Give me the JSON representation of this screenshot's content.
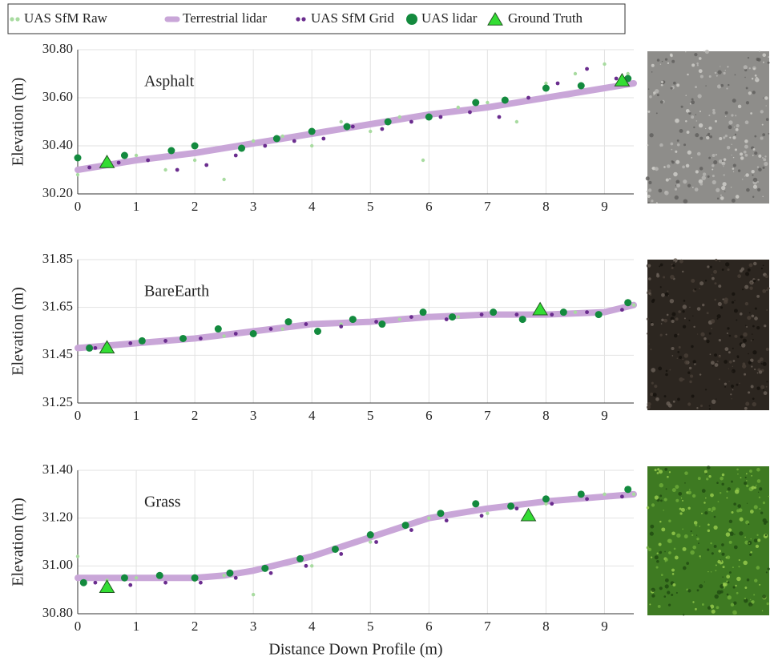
{
  "chart_data": [
    {
      "type": "scatter",
      "title": "Asphalt",
      "ylabel": "Elevation (m)",
      "legend": "top",
      "grid": true,
      "xlim": [
        0,
        9.5
      ],
      "xticks": [
        0,
        1,
        2,
        3,
        4,
        5,
        6,
        7,
        8,
        9
      ],
      "ylim": [
        30.2,
        30.8
      ],
      "yticks": [
        {
          "value": 30.2,
          "label": "30.20"
        },
        {
          "value": 30.4,
          "label": "30.40"
        },
        {
          "value": 30.6,
          "label": "30.60"
        },
        {
          "value": 30.8,
          "label": "30.80"
        }
      ],
      "series": [
        {
          "name": "UAS SfM Raw",
          "color": "#a8dba0",
          "marker": "dot",
          "x": [
            0,
            0.5,
            1,
            1.5,
            2,
            2.5,
            3,
            3.5,
            4,
            4.5,
            5,
            5.5,
            5.9,
            6.5,
            7,
            7.5,
            8,
            8.5,
            9,
            9.4
          ],
          "values": [
            30.28,
            30.32,
            30.36,
            30.3,
            30.34,
            30.26,
            30.42,
            30.44,
            30.4,
            30.5,
            30.46,
            30.52,
            30.34,
            30.56,
            30.58,
            30.5,
            30.66,
            30.7,
            30.74,
            30.7
          ]
        },
        {
          "name": "Terrestrial  lidar",
          "color": "#c9a6d8",
          "marker": "line",
          "x": [
            0,
            1,
            2,
            3,
            4,
            5,
            6,
            7,
            8,
            9,
            9.5
          ],
          "values": [
            30.3,
            30.34,
            30.37,
            30.41,
            30.45,
            30.49,
            30.53,
            30.56,
            30.6,
            30.64,
            30.66
          ]
        },
        {
          "name": "UAS SfM Grid",
          "color": "#6a2c8e",
          "marker": "small",
          "x": [
            0.2,
            0.7,
            1.2,
            1.7,
            2.2,
            2.7,
            3.2,
            3.7,
            4.2,
            4.7,
            5.2,
            5.7,
            6.2,
            6.7,
            7.2,
            7.7,
            8.2,
            8.7,
            9.2
          ],
          "values": [
            30.31,
            30.33,
            30.34,
            30.3,
            30.32,
            30.36,
            30.4,
            30.42,
            30.43,
            30.48,
            30.47,
            30.5,
            30.52,
            30.54,
            30.52,
            30.6,
            30.66,
            30.72,
            30.68
          ]
        },
        {
          "name": "UAS lidar",
          "color": "#138a3e",
          "marker": "circle",
          "x": [
            0,
            0.8,
            1.6,
            2.0,
            2.8,
            3.4,
            4.0,
            4.6,
            5.3,
            6.0,
            6.8,
            7.3,
            8.0,
            8.6,
            9.4
          ],
          "values": [
            30.35,
            30.36,
            30.38,
            30.4,
            30.39,
            30.43,
            30.46,
            30.48,
            30.5,
            30.52,
            30.58,
            30.59,
            30.64,
            30.65,
            30.68
          ]
        },
        {
          "name": "Ground Truth",
          "color": "#33dd33",
          "marker": "triangle",
          "x": [
            0.5,
            9.3
          ],
          "values": [
            30.33,
            30.67
          ]
        }
      ]
    },
    {
      "type": "scatter",
      "title": "BareEarth",
      "ylabel": "Elevation (m)",
      "grid": true,
      "xlim": [
        0,
        9.5
      ],
      "xticks": [
        0,
        1,
        2,
        3,
        4,
        5,
        6,
        7,
        8,
        9
      ],
      "ylim": [
        31.25,
        31.85
      ],
      "yticks": [
        31.25,
        31.45,
        31.65,
        31.85
      ],
      "series": [
        {
          "color": "#a8dba0",
          "marker": "dot",
          "x": [
            0.5,
            1.5,
            2.5,
            3.5,
            4.5,
            5.5,
            6.5,
            7.5,
            8.5,
            9.5
          ],
          "values": [
            31.48,
            31.51,
            31.53,
            31.56,
            31.58,
            31.6,
            31.61,
            31.62,
            31.63,
            31.66
          ]
        },
        {
          "color": "#c9a6d8",
          "marker": "line",
          "x": [
            0,
            1,
            2,
            3,
            4,
            5,
            6,
            7,
            8,
            9,
            9.5
          ],
          "values": [
            31.48,
            31.5,
            31.52,
            31.55,
            31.58,
            31.59,
            31.61,
            31.62,
            31.62,
            31.63,
            31.66
          ]
        },
        {
          "color": "#6a2c8e",
          "marker": "small",
          "x": [
            0.3,
            0.9,
            1.5,
            2.1,
            2.7,
            3.3,
            3.9,
            4.5,
            5.1,
            5.7,
            6.3,
            6.9,
            7.5,
            8.1,
            8.7,
            9.3
          ],
          "values": [
            31.48,
            31.5,
            31.51,
            31.52,
            31.54,
            31.56,
            31.58,
            31.57,
            31.59,
            31.61,
            31.6,
            31.62,
            31.62,
            31.62,
            31.63,
            31.64
          ]
        },
        {
          "color": "#138a3e",
          "marker": "circle",
          "x": [
            0.2,
            1.1,
            1.8,
            2.4,
            3.0,
            3.6,
            4.1,
            4.7,
            5.2,
            5.9,
            6.4,
            7.1,
            7.6,
            8.3,
            8.9,
            9.4
          ],
          "values": [
            31.48,
            31.51,
            31.52,
            31.56,
            31.54,
            31.59,
            31.55,
            31.6,
            31.58,
            31.63,
            31.61,
            31.63,
            31.6,
            31.63,
            31.62,
            31.67
          ]
        },
        {
          "color": "#33dd33",
          "marker": "triangle",
          "x": [
            0.5,
            7.9
          ],
          "values": [
            31.48,
            31.64
          ]
        }
      ]
    },
    {
      "type": "scatter",
      "title": "Grass",
      "ylabel": "Elevation (m)",
      "xlabel": "Distance Down Profile (m)",
      "grid": true,
      "xlim": [
        0,
        9.5
      ],
      "xticks": [
        0,
        1,
        2,
        3,
        4,
        5,
        6,
        7,
        8,
        9
      ],
      "ylim": [
        30.8,
        31.4
      ],
      "yticks": [
        {
          "value": 30.8,
          "label": "30.80"
        },
        {
          "value": 31.0,
          "label": "31.00"
        },
        {
          "value": 31.2,
          "label": "31.20"
        },
        {
          "value": 31.4,
          "label": "31.40"
        }
      ],
      "series": [
        {
          "color": "#a8dba0",
          "marker": "dot",
          "x": [
            0,
            0.5,
            1,
            2,
            2.5,
            3,
            4,
            5,
            6,
            7,
            7.5,
            8,
            9,
            9.5
          ],
          "values": [
            31.04,
            30.94,
            30.95,
            30.94,
            30.96,
            30.88,
            31.0,
            31.1,
            31.2,
            31.22,
            31.24,
            31.26,
            31.3,
            31.3
          ]
        },
        {
          "color": "#c9a6d8",
          "marker": "line",
          "x": [
            0,
            1,
            2,
            2.5,
            3,
            4,
            5,
            6,
            7,
            8,
            9,
            9.5
          ],
          "values": [
            30.95,
            30.95,
            30.95,
            30.96,
            30.98,
            31.04,
            31.12,
            31.2,
            31.24,
            31.27,
            31.29,
            31.3
          ]
        },
        {
          "color": "#6a2c8e",
          "marker": "small",
          "x": [
            0.3,
            0.9,
            1.5,
            2.1,
            2.7,
            3.3,
            3.9,
            4.5,
            5.1,
            5.7,
            6.3,
            6.9,
            7.5,
            8.1,
            8.7,
            9.3
          ],
          "values": [
            30.93,
            30.92,
            30.93,
            30.93,
            30.95,
            30.97,
            31.0,
            31.05,
            31.1,
            31.15,
            31.19,
            31.21,
            31.24,
            31.26,
            31.28,
            31.29
          ]
        },
        {
          "color": "#138a3e",
          "marker": "circle",
          "x": [
            0.1,
            0.8,
            1.4,
            2.0,
            2.6,
            3.2,
            3.8,
            4.4,
            5.0,
            5.6,
            6.2,
            6.8,
            7.4,
            8.0,
            8.6,
            9.4
          ],
          "values": [
            30.93,
            30.95,
            30.96,
            30.95,
            30.97,
            30.99,
            31.03,
            31.07,
            31.13,
            31.17,
            31.22,
            31.26,
            31.25,
            31.28,
            31.3,
            31.32
          ]
        },
        {
          "color": "#33dd33",
          "marker": "triangle",
          "x": [
            0.5,
            7.7
          ],
          "values": [
            30.91,
            31.21
          ]
        }
      ]
    }
  ]
}
